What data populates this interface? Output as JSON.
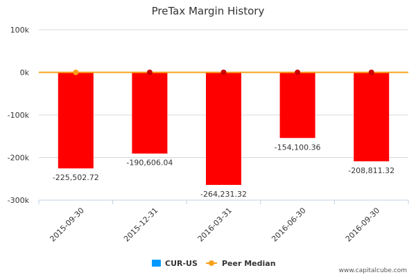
{
  "chart_data": {
    "type": "bar",
    "title": "PreTax Margin History",
    "categories": [
      "2015-09-30",
      "2015-12-31",
      "2016-03-31",
      "2016-06-30",
      "2016-09-30"
    ],
    "series": [
      {
        "name": "CUR-US",
        "type": "bar",
        "values": [
          -225502.72,
          -190606.04,
          -264231.32,
          -154100.36,
          -208811.32
        ],
        "data_labels": [
          "-225,502.72",
          "-190,606.04",
          "-264,231.32",
          "-154,100.36",
          "-208,811.32"
        ],
        "color": "#ff0000",
        "legend_color": "#0099ff"
      },
      {
        "name": "Peer Median",
        "type": "line",
        "values": [
          0,
          0,
          0,
          0,
          0
        ],
        "color": "#f7a11a",
        "marker_colors": [
          "#f7a11a",
          "#cc0000",
          "#cc0000",
          "#cc0000",
          "#cc0000"
        ]
      }
    ],
    "ylim": [
      -300000,
      100000
    ],
    "yticks": [
      100000,
      0,
      -100000,
      -200000,
      -300000
    ],
    "ytick_labels": [
      "100k",
      "0k",
      "-100k",
      "-200k",
      "-300k"
    ],
    "grid": true,
    "legend_position": "bottom-center"
  },
  "watermark": "www.capitalcube.com"
}
